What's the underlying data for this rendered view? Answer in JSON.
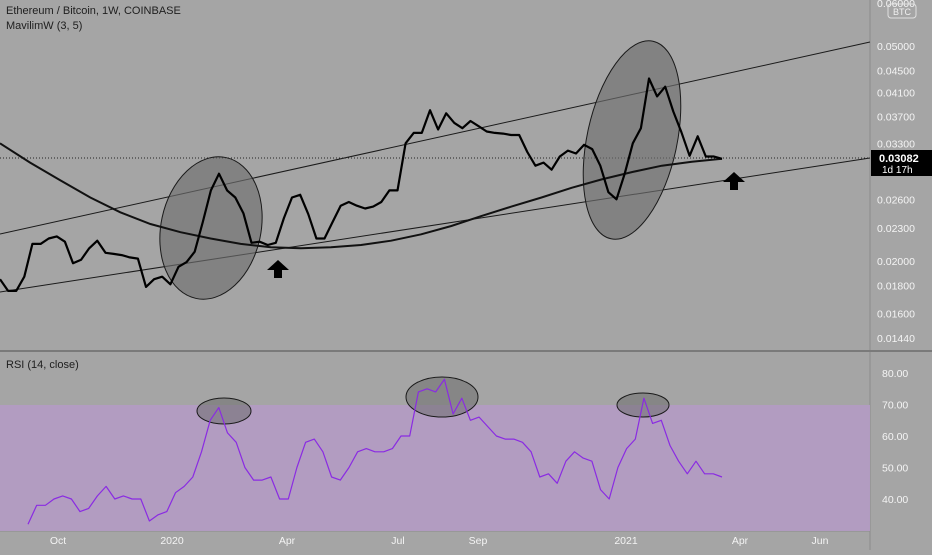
{
  "header": {
    "symbol": "Ethereum / Bitcoin, 1W, COINBASE",
    "indicator": "MavilimW (3, 5)",
    "currency_badge": "BTC"
  },
  "price_label": {
    "value": "0.03082",
    "countdown": "1d 17h"
  },
  "rsi_pane": {
    "title": "RSI (14, close)"
  },
  "colors": {
    "background": "#a5a5a5",
    "price_line": "#000000",
    "rsi_line": "#8a2be2",
    "rsi_band": "#b49bc4",
    "ellipse_fill": "#6e6e6e",
    "label_bg": "#000000"
  },
  "chart_data": [
    {
      "type": "line",
      "title": "Ethereum / Bitcoin, 1W, COINBASE",
      "xlabel": "",
      "ylabel": "",
      "x_ticks": [
        "Oct",
        "2020",
        "Apr",
        "Jul",
        "Sep",
        "2021",
        "Apr",
        "Jun"
      ],
      "y_ticks": [
        "0.01440",
        "0.01600",
        "0.01800",
        "0.02000",
        "0.02300",
        "0.02600",
        "0.03300",
        "0.03700",
        "0.04100",
        "0.04500",
        "0.05000",
        "0.06000"
      ],
      "y_scale": "log",
      "ylim": [
        0.0138,
        0.062
      ],
      "series": [
        {
          "name": "",
          "values": [
            0.0185,
            0.0176,
            0.0176,
            0.0187,
            0.0215,
            0.0215,
            0.022,
            0.0222,
            0.0217,
            0.0198,
            0.0201,
            0.0211,
            0.0218,
            0.0207,
            0.0206,
            0.0205,
            0.0203,
            0.0202,
            0.0179,
            0.0185,
            0.0187,
            0.0181,
            0.0195,
            0.0199,
            0.0208,
            0.0236,
            0.027,
            0.029,
            0.027,
            0.0262,
            0.0245,
            0.0216,
            0.0217,
            0.0214,
            0.0216,
            0.024,
            0.0262,
            0.0265,
            0.0244,
            0.022,
            0.022,
            0.0236,
            0.0253,
            0.0257,
            0.0253,
            0.025,
            0.0252,
            0.0257,
            0.027,
            0.027,
            0.033,
            0.0345,
            0.0345,
            0.038,
            0.035,
            0.0375,
            0.036,
            0.0352,
            0.0363,
            0.0355,
            0.0347,
            0.0345,
            0.0344,
            0.0342,
            0.0342,
            0.0318,
            0.03,
            0.0304,
            0.0295,
            0.0312,
            0.032,
            0.0316,
            0.0328,
            0.0322,
            0.03,
            0.0268,
            0.026,
            0.029,
            0.033,
            0.0352,
            0.0435,
            0.0403,
            0.042,
            0.0378,
            0.0346,
            0.0313,
            0.034,
            0.0312,
            0.0312,
            0.0309
          ]
        },
        {
          "name": "MavilimW (3, 5)",
          "values": [
            0.033,
            0.0304,
            0.0282,
            0.0262,
            0.0246,
            0.0234,
            0.0226,
            0.022,
            0.0215,
            0.0212,
            0.0211,
            0.0212,
            0.0214,
            0.0218,
            0.0224,
            0.0232,
            0.0242,
            0.0252,
            0.0262,
            0.0273,
            0.0283,
            0.0292,
            0.03,
            0.0305,
            0.0309
          ]
        }
      ]
    },
    {
      "type": "line",
      "title": "RSI (14, close)",
      "xlabel": "",
      "ylabel": "",
      "y_ticks": [
        "40.00",
        "50.00",
        "60.00",
        "70.00",
        "80.00"
      ],
      "ylim": [
        27,
        85
      ],
      "band": [
        30,
        70
      ],
      "series": [
        {
          "name": "",
          "values": [
            32,
            38,
            38,
            40,
            41,
            40,
            36,
            37,
            41,
            44,
            40,
            41,
            40,
            40,
            33,
            35,
            36,
            42,
            44,
            47,
            55,
            65,
            69,
            61,
            58,
            50,
            46,
            46,
            47,
            40,
            40,
            50,
            58,
            59,
            55,
            47,
            46,
            50,
            55,
            56,
            55,
            55,
            56,
            60,
            60,
            74,
            75,
            74,
            78,
            67,
            72,
            65,
            66,
            63,
            60,
            59,
            59,
            58,
            55,
            47,
            48,
            45,
            52,
            55,
            53,
            52,
            43,
            40,
            50,
            56,
            59,
            72,
            64,
            65,
            57,
            52,
            48,
            52,
            48,
            48,
            47
          ]
        }
      ]
    }
  ]
}
